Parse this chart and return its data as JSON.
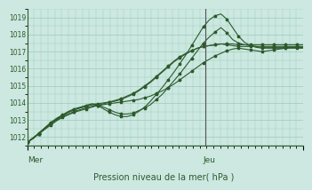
{
  "xlabel": "Pression niveau de la mer( hPa )",
  "ylim": [
    1011.5,
    1019.5
  ],
  "yticks": [
    1012,
    1013,
    1014,
    1015,
    1016,
    1017,
    1018,
    1019
  ],
  "xtick_labels": [
    "Mer",
    "Jeu"
  ],
  "xtick_pos": [
    0.0,
    0.645
  ],
  "vline_x": 0.645,
  "bg_color": "#cce8e0",
  "grid_color": "#99ccbb",
  "line_color": "#2d5a2d",
  "axis_color": "#2d5a2d",
  "n_points": 48,
  "lines": [
    [
      1011.7,
      1011.9,
      1012.2,
      1012.5,
      1012.8,
      1013.0,
      1013.2,
      1013.35,
      1013.5,
      1013.6,
      1013.7,
      1013.8,
      1013.85,
      1013.9,
      1013.95,
      1014.0,
      1014.05,
      1014.1,
      1014.15,
      1014.2,
      1014.3,
      1014.4,
      1014.55,
      1014.7,
      1014.9,
      1015.1,
      1015.35,
      1015.6,
      1015.85,
      1016.1,
      1016.35,
      1016.55,
      1016.75,
      1016.9,
      1017.05,
      1017.15,
      1017.2,
      1017.15,
      1017.1,
      1017.05,
      1017.0,
      1017.05,
      1017.1,
      1017.15,
      1017.2,
      1017.25,
      1017.25,
      1017.25
    ],
    [
      1011.7,
      1011.95,
      1012.25,
      1012.55,
      1012.85,
      1013.1,
      1013.3,
      1013.5,
      1013.65,
      1013.75,
      1013.85,
      1013.95,
      1013.9,
      1013.75,
      1013.6,
      1013.45,
      1013.35,
      1013.35,
      1013.4,
      1013.55,
      1013.7,
      1013.9,
      1014.2,
      1014.5,
      1014.9,
      1015.3,
      1015.7,
      1016.15,
      1016.6,
      1017.05,
      1017.5,
      1017.85,
      1018.15,
      1018.4,
      1018.1,
      1017.7,
      1017.5,
      1017.4,
      1017.35,
      1017.3,
      1017.25,
      1017.25,
      1017.25,
      1017.25,
      1017.25,
      1017.25,
      1017.25,
      1017.25
    ],
    [
      1011.7,
      1011.95,
      1012.2,
      1012.5,
      1012.8,
      1013.05,
      1013.25,
      1013.45,
      1013.6,
      1013.7,
      1013.8,
      1013.9,
      1013.85,
      1013.65,
      1013.45,
      1013.3,
      1013.2,
      1013.2,
      1013.3,
      1013.5,
      1013.75,
      1014.1,
      1014.5,
      1014.9,
      1015.35,
      1015.8,
      1016.3,
      1016.8,
      1017.35,
      1017.9,
      1018.45,
      1018.85,
      1019.1,
      1019.2,
      1018.9,
      1018.4,
      1017.9,
      1017.55,
      1017.35,
      1017.25,
      1017.2,
      1017.2,
      1017.2,
      1017.2,
      1017.2,
      1017.2,
      1017.2,
      1017.2
    ],
    [
      1011.7,
      1011.95,
      1012.2,
      1012.5,
      1012.8,
      1013.05,
      1013.25,
      1013.45,
      1013.6,
      1013.7,
      1013.8,
      1013.9,
      1013.95,
      1014.0,
      1014.05,
      1014.1,
      1014.2,
      1014.35,
      1014.5,
      1014.7,
      1014.95,
      1015.2,
      1015.5,
      1015.8,
      1016.1,
      1016.4,
      1016.65,
      1016.85,
      1017.05,
      1017.2,
      1017.3,
      1017.35,
      1017.4,
      1017.45,
      1017.4,
      1017.35,
      1017.3,
      1017.3,
      1017.3,
      1017.3,
      1017.3,
      1017.3,
      1017.3,
      1017.3,
      1017.3,
      1017.3,
      1017.3,
      1017.3
    ],
    [
      1011.7,
      1011.95,
      1012.2,
      1012.45,
      1012.7,
      1012.95,
      1013.15,
      1013.3,
      1013.45,
      1013.55,
      1013.65,
      1013.75,
      1013.85,
      1013.95,
      1014.05,
      1014.15,
      1014.25,
      1014.4,
      1014.55,
      1014.75,
      1015.0,
      1015.25,
      1015.55,
      1015.85,
      1016.15,
      1016.45,
      1016.7,
      1016.9,
      1017.05,
      1017.2,
      1017.3,
      1017.35,
      1017.4,
      1017.45,
      1017.45,
      1017.45,
      1017.4,
      1017.4,
      1017.4,
      1017.4,
      1017.4,
      1017.4,
      1017.4,
      1017.4,
      1017.4,
      1017.4,
      1017.4,
      1017.4
    ]
  ]
}
